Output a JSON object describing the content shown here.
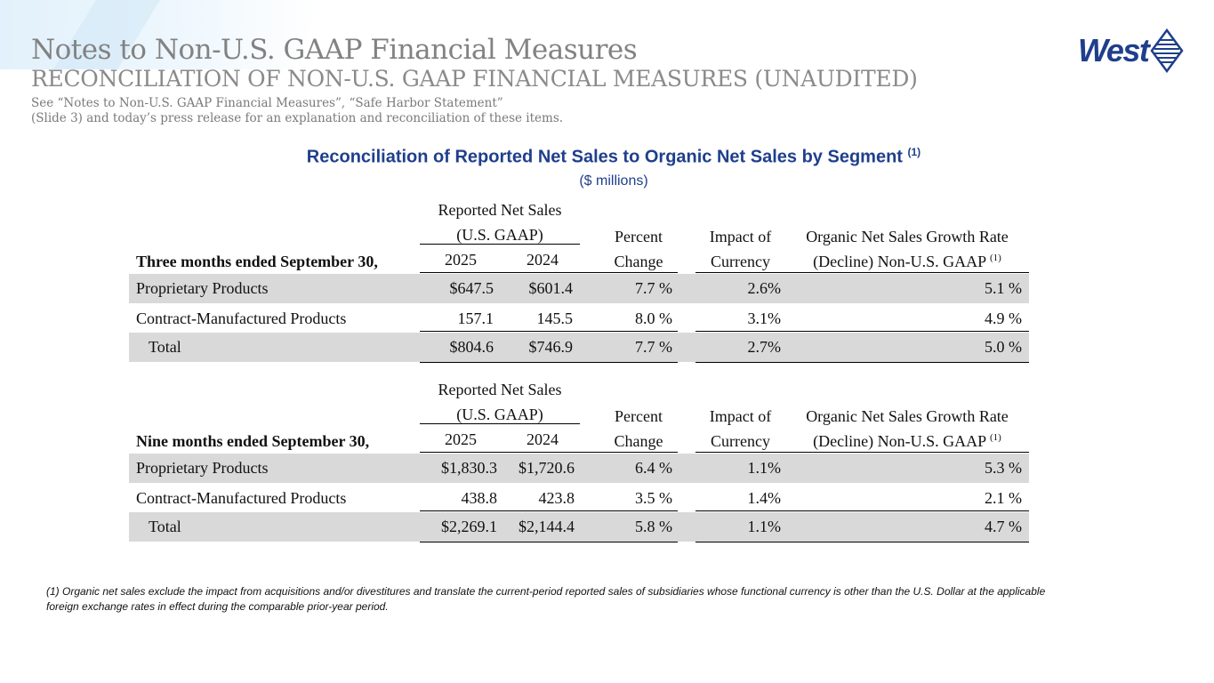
{
  "header": {
    "title": "Notes to Non-U.S. GAAP Financial Measures",
    "subtitle": "RECONCILIATION OF NON-U.S. GAAP FINANCIAL MEASURES (UNAUDITED)",
    "note_line1": "See “Notes to Non-U.S. GAAP Financial Measures”, “Safe Harbor Statement”",
    "note_line2": "(Slide 3) and today’s press release for an explanation and reconciliation of these items.",
    "logo_text": "West"
  },
  "section": {
    "title": "Reconciliation of Reported Net Sales to Organic Net Sales by Segment",
    "title_sup": "(1)",
    "units": "($ millions)"
  },
  "columns": {
    "reported_line1": "Reported Net Sales",
    "reported_line2": "(U.S. GAAP)",
    "percent_line1": "Percent",
    "percent_line2": "Change",
    "currency_line1": "Impact of",
    "currency_line2": "Currency",
    "organic_line1": "Organic Net Sales Growth Rate",
    "organic_line2": "(Decline) Non-U.S. GAAP",
    "organic_sup": "(1)"
  },
  "three_months": {
    "heading": "Three months ended September 30,",
    "year1": "2025",
    "year2": "2024",
    "rows": [
      {
        "label": "Proprietary Products",
        "y1": "$647.5",
        "y2": "$601.4",
        "pct": "7.7 %",
        "fx": "2.6%",
        "organic": "5.1 %"
      },
      {
        "label": "Contract-Manufactured Products",
        "y1": "157.1",
        "y2": "145.5",
        "pct": "8.0 %",
        "fx": "3.1%",
        "organic": "4.9 %"
      },
      {
        "label": "Total",
        "y1": "$804.6",
        "y2": "$746.9",
        "pct": "7.7 %",
        "fx": "2.7%",
        "organic": "5.0 %"
      }
    ]
  },
  "nine_months": {
    "heading": "Nine months ended September 30,",
    "year1": "2025",
    "year2": "2024",
    "rows": [
      {
        "label": "Proprietary Products",
        "y1": "$1,830.3",
        "y2": "$1,720.6",
        "pct": "6.4 %",
        "fx": "1.1%",
        "organic": "5.3 %"
      },
      {
        "label": "Contract-Manufactured Products",
        "y1": "438.8",
        "y2": "423.8",
        "pct": "3.5 %",
        "fx": "1.4%",
        "organic": "2.1 %"
      },
      {
        "label": "Total",
        "y1": "$2,269.1",
        "y2": "$2,144.4",
        "pct": "5.8 %",
        "fx": "1.1%",
        "organic": "4.7 %"
      }
    ]
  },
  "footnote": {
    "line1": "(1)  Organic net sales exclude the impact from acquisitions and/or divestitures and translate the current-period reported sales of subsidiaries whose functional currency is other than the U.S. Dollar at the applicable",
    "line2": "foreign exchange rates in effect during the comparable prior-year period."
  },
  "colors": {
    "accent": "#1f3f8c",
    "shade": "#d9d9d9",
    "title_gray": "#828282"
  }
}
